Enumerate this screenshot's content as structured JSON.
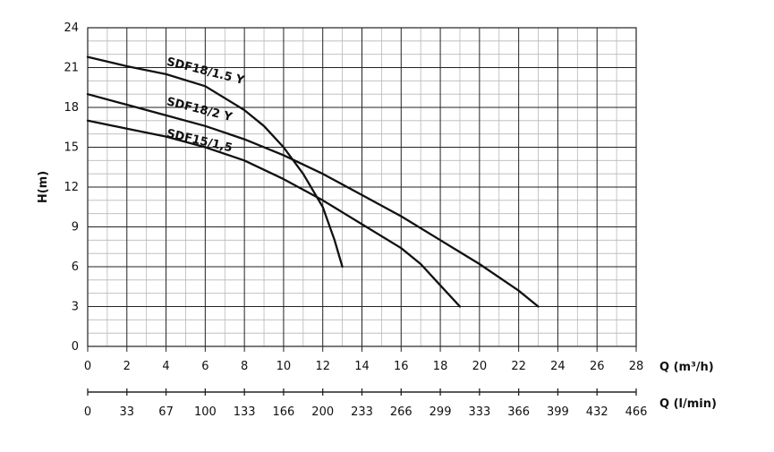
{
  "chart_data": {
    "type": "line",
    "xlabel": "Q (m³/h)",
    "ylabel": "H(m)",
    "x2label": "Q (l/min)",
    "xlim": [
      0,
      28
    ],
    "ylim": [
      0,
      24
    ],
    "xticks": [
      "0",
      "2",
      "4",
      "6",
      "8",
      "10",
      "12",
      "14",
      "16",
      "18",
      "20",
      "22",
      "24",
      "26",
      "28"
    ],
    "yticks": [
      "0",
      "3",
      "6",
      "9",
      "12",
      "15",
      "18",
      "21",
      "24"
    ],
    "x2ticks": [
      "0",
      "33",
      "67",
      "100",
      "133",
      "166",
      "200",
      "233",
      "266",
      "299",
      "333",
      "366",
      "399",
      "432",
      "466"
    ],
    "grid": true,
    "series": [
      {
        "name": "SDF18/1.5 Y",
        "points": [
          [
            0,
            21.8
          ],
          [
            2,
            21.1
          ],
          [
            4,
            20.5
          ],
          [
            6,
            19.6
          ],
          [
            8,
            17.8
          ],
          [
            9,
            16.6
          ],
          [
            10,
            15.0
          ],
          [
            11,
            13.0
          ],
          [
            12,
            10.5
          ],
          [
            12.6,
            8.0
          ],
          [
            13,
            6.0
          ]
        ]
      },
      {
        "name": "SDF18/2 Y",
        "points": [
          [
            0,
            19.0
          ],
          [
            2,
            18.2
          ],
          [
            4,
            17.4
          ],
          [
            6,
            16.6
          ],
          [
            8,
            15.6
          ],
          [
            10,
            14.4
          ],
          [
            12,
            13.0
          ],
          [
            14,
            11.4
          ],
          [
            16,
            9.8
          ],
          [
            18,
            8.0
          ],
          [
            20,
            6.2
          ],
          [
            22,
            4.2
          ],
          [
            23,
            3.0
          ]
        ]
      },
      {
        "name": "SDF15/1,5",
        "points": [
          [
            0,
            17.0
          ],
          [
            2,
            16.4
          ],
          [
            4,
            15.8
          ],
          [
            6,
            15.0
          ],
          [
            8,
            14.0
          ],
          [
            10,
            12.6
          ],
          [
            12,
            11.0
          ],
          [
            14,
            9.2
          ],
          [
            16,
            7.4
          ],
          [
            17,
            6.2
          ],
          [
            18,
            4.6
          ],
          [
            19,
            3.0
          ]
        ]
      }
    ]
  }
}
